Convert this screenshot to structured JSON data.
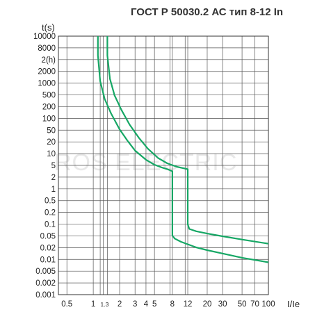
{
  "title": "ГОСТ Р 50030.2 АС тип    8-12 In",
  "watermark": "ROS ELECTRIC",
  "colors": {
    "curve": "#16a765",
    "grid": "#555555",
    "frame": "#333333",
    "text": "#222222"
  },
  "chart_data": {
    "type": "line",
    "title": "ГОСТ Р 50030.2 АС тип    8-12 In",
    "xlabel": "I/Ie",
    "ylabel": "t(s)",
    "x_scale": "log",
    "y_scale": "log",
    "xlim": [
      0.4,
      100
    ],
    "ylim": [
      0.001,
      10000
    ],
    "grid": true,
    "legend": "none",
    "y_tick_labels": [
      "10000",
      "8000",
      "2(h)",
      "2000",
      "1000",
      "500",
      "200",
      "100",
      "50",
      "20",
      "10",
      "5",
      "2",
      "1",
      "0.5",
      "0.2",
      "0.1",
      "0.05",
      "0.02",
      "0.01",
      "0.005",
      "0.002",
      "0.001"
    ],
    "x_tick_labels": [
      "0.5",
      "1",
      "1.3",
      "2",
      "3",
      "4",
      "5",
      "8",
      "12",
      "20",
      "30",
      "50",
      "70",
      "100"
    ],
    "series": [
      {
        "x": [
          1.13,
          1.13,
          1.2,
          1.35,
          1.6,
          2.0,
          2.5,
          3.0,
          4.0,
          5.0,
          6.0,
          7.0,
          8.0,
          8.0,
          8.5,
          10,
          15,
          20,
          30,
          50,
          100
        ],
        "y": [
          10000,
          3000,
          600,
          200,
          80,
          30,
          14,
          8,
          4.5,
          3.3,
          2.8,
          2.5,
          2.2,
          0.04,
          0.033,
          0.027,
          0.019,
          0.016,
          0.013,
          0.01,
          0.0075
        ]
      },
      {
        "x": [
          1.45,
          1.45,
          1.55,
          1.75,
          2.1,
          2.6,
          3.3,
          4.2,
          5.5,
          7.0,
          9.0,
          12,
          12,
          12.5,
          15,
          20,
          30,
          50,
          100
        ],
        "y": [
          10000,
          3000,
          700,
          250,
          100,
          40,
          18,
          9,
          5,
          3.6,
          2.9,
          2.5,
          0.08,
          0.06,
          0.052,
          0.045,
          0.038,
          0.031,
          0.024
        ]
      }
    ]
  }
}
